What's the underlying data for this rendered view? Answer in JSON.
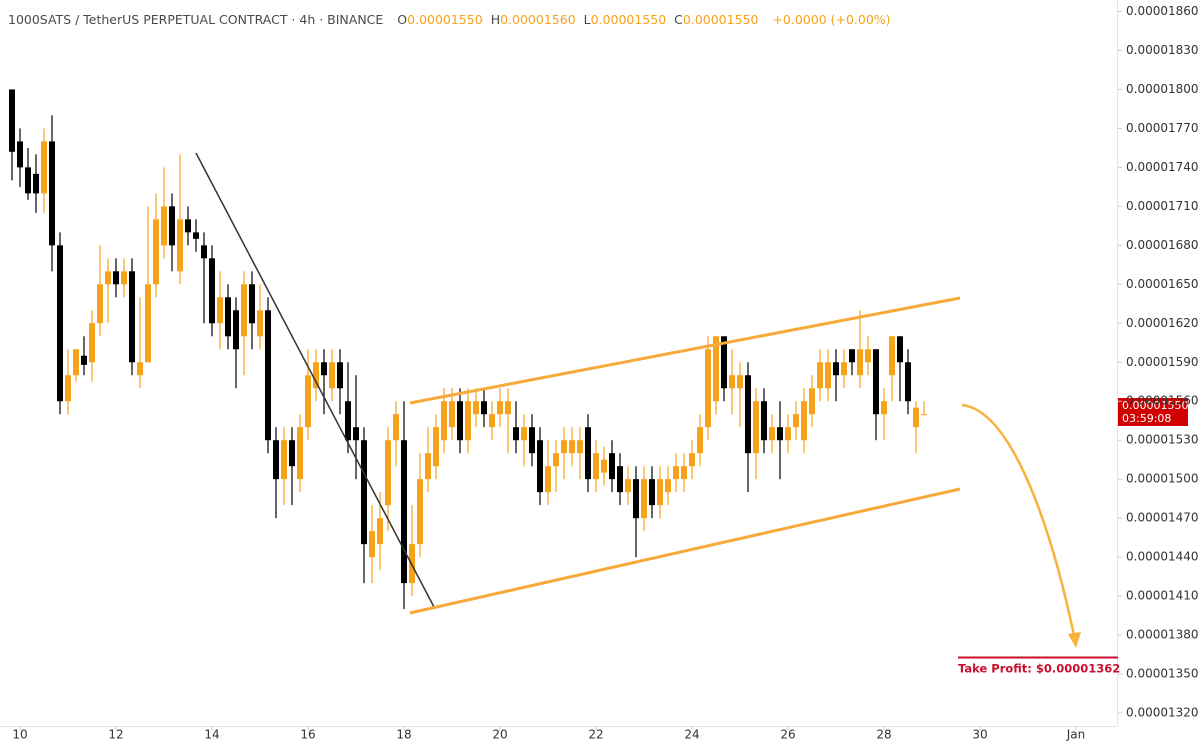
{
  "chart_data": {
    "type": "candlestick",
    "title": "1000SATS / TetherUS PERPETUAL CONTRACT · 4h · BINANCE",
    "legend": {
      "o": "O",
      "open": "0.00001550",
      "h": "H",
      "high": "0.00001560",
      "l": "L",
      "low": "0.00001550",
      "c": "C",
      "close": "0.00001550",
      "change": "+0.0000 (+0.00%)"
    },
    "last_price_label": "0.00001550",
    "countdown": "03:59:08",
    "take_profit_label": "Take Profit: $0.00001362",
    "up_color": "#f7a21b",
    "down_color": "#000000",
    "open": [
      1.8e-05,
      1.76e-05,
      1.74e-05,
      1.735e-05,
      1.72e-05,
      1.76e-05,
      1.68e-05,
      1.56e-05,
      1.58e-05,
      1.595e-05,
      1.59e-05,
      1.62e-05,
      1.65e-05,
      1.66e-05,
      1.65e-05,
      1.66e-05,
      1.58e-05,
      1.59e-05,
      1.65e-05,
      1.68e-05,
      1.71e-05,
      1.66e-05,
      1.7e-05,
      1.69e-05,
      1.68e-05,
      1.67e-05,
      1.62e-05,
      1.64e-05,
      1.63e-05,
      1.61e-05,
      1.65e-05,
      1.61e-05,
      1.63e-05,
      1.53e-05,
      1.5e-05,
      1.53e-05,
      1.5e-05,
      1.54e-05,
      1.57e-05,
      1.59e-05,
      1.57e-05,
      1.59e-05,
      1.56e-05,
      1.54e-05,
      1.53e-05,
      1.44e-05,
      1.45e-05,
      1.48e-05,
      1.53e-05,
      1.53e-05,
      1.42e-05,
      1.45e-05,
      1.5e-05,
      1.51e-05,
      1.53e-05,
      1.54e-05,
      1.56e-05,
      1.53e-05,
      1.55e-05,
      1.56e-05,
      1.54e-05,
      1.55e-05,
      1.55e-05,
      1.54e-05,
      1.53e-05,
      1.54e-05,
      1.53e-05,
      1.49e-05,
      1.51e-05,
      1.52e-05,
      1.52e-05,
      1.52e-05,
      1.54e-05,
      1.5e-05,
      1.505e-05,
      1.52e-05,
      1.51e-05,
      1.49e-05,
      1.5e-05,
      1.47e-05,
      1.5e-05,
      1.48e-05,
      1.49e-05,
      1.5e-05,
      1.5e-05,
      1.51e-05,
      1.52e-05,
      1.54e-05,
      1.56e-05,
      1.61e-05,
      1.57e-05,
      1.57e-05,
      1.58e-05,
      1.52e-05,
      1.56e-05,
      1.53e-05,
      1.54e-05,
      1.53e-05,
      1.54e-05,
      1.53e-05,
      1.55e-05,
      1.57e-05,
      1.57e-05,
      1.59e-05,
      1.58e-05,
      1.6e-05,
      1.58e-05,
      1.59e-05,
      1.6e-05,
      1.55e-05,
      1.58e-05,
      1.61e-05,
      1.59e-05,
      1.54e-05,
      1.55e-05
    ],
    "high": [
      1.8e-05,
      1.77e-05,
      1.755e-05,
      1.75e-05,
      1.77e-05,
      1.78e-05,
      1.69e-05,
      1.6e-05,
      1.6e-05,
      1.61e-05,
      1.63e-05,
      1.68e-05,
      1.67e-05,
      1.67e-05,
      1.67e-05,
      1.67e-05,
      1.64e-05,
      1.71e-05,
      1.72e-05,
      1.74e-05,
      1.72e-05,
      1.75e-05,
      1.71e-05,
      1.7e-05,
      1.69e-05,
      1.68e-05,
      1.66e-05,
      1.65e-05,
      1.64e-05,
      1.66e-05,
      1.66e-05,
      1.65e-05,
      1.64e-05,
      1.54e-05,
      1.54e-05,
      1.54e-05,
      1.55e-05,
      1.6e-05,
      1.6e-05,
      1.6e-05,
      1.6e-05,
      1.6e-05,
      1.59e-05,
      1.58e-05,
      1.54e-05,
      1.48e-05,
      1.49e-05,
      1.54e-05,
      1.56e-05,
      1.56e-05,
      1.48e-05,
      1.52e-05,
      1.54e-05,
      1.55e-05,
      1.57e-05,
      1.57e-05,
      1.57e-05,
      1.57e-05,
      1.57e-05,
      1.57e-05,
      1.56e-05,
      1.57e-05,
      1.57e-05,
      1.56e-05,
      1.55e-05,
      1.55e-05,
      1.54e-05,
      1.53e-05,
      1.53e-05,
      1.54e-05,
      1.54e-05,
      1.54e-05,
      1.55e-05,
      1.53e-05,
      1.525e-05,
      1.53e-05,
      1.52e-05,
      1.51e-05,
      1.51e-05,
      1.51e-05,
      1.51e-05,
      1.51e-05,
      1.51e-05,
      1.52e-05,
      1.52e-05,
      1.53e-05,
      1.55e-05,
      1.61e-05,
      1.61e-05,
      1.61e-05,
      1.6e-05,
      1.59e-05,
      1.59e-05,
      1.57e-05,
      1.57e-05,
      1.55e-05,
      1.56e-05,
      1.55e-05,
      1.56e-05,
      1.57e-05,
      1.58e-05,
      1.6e-05,
      1.6e-05,
      1.6e-05,
      1.6e-05,
      1.6e-05,
      1.63e-05,
      1.61e-05,
      1.6e-05,
      1.57e-05,
      1.61e-05,
      1.61e-05,
      1.6e-05,
      1.56e-05,
      1.56e-05
    ],
    "low": [
      1.73e-05,
      1.725e-05,
      1.715e-05,
      1.705e-05,
      1.705e-05,
      1.66e-05,
      1.55e-05,
      1.55e-05,
      1.575e-05,
      1.58e-05,
      1.575e-05,
      1.61e-05,
      1.62e-05,
      1.64e-05,
      1.64e-05,
      1.58e-05,
      1.57e-05,
      1.59e-05,
      1.64e-05,
      1.67e-05,
      1.66e-05,
      1.65e-05,
      1.68e-05,
      1.675e-05,
      1.62e-05,
      1.61e-05,
      1.6e-05,
      1.6e-05,
      1.57e-05,
      1.58e-05,
      1.6e-05,
      1.6e-05,
      1.52e-05,
      1.47e-05,
      1.48e-05,
      1.48e-05,
      1.49e-05,
      1.53e-05,
      1.56e-05,
      1.55e-05,
      1.56e-05,
      1.55e-05,
      1.52e-05,
      1.5e-05,
      1.42e-05,
      1.42e-05,
      1.43e-05,
      1.46e-05,
      1.51e-05,
      1.4e-05,
      1.41e-05,
      1.44e-05,
      1.49e-05,
      1.5e-05,
      1.52e-05,
      1.53e-05,
      1.52e-05,
      1.52e-05,
      1.54e-05,
      1.54e-05,
      1.53e-05,
      1.54e-05,
      1.52e-05,
      1.52e-05,
      1.51e-05,
      1.51e-05,
      1.48e-05,
      1.48e-05,
      1.49e-05,
      1.5e-05,
      1.51e-05,
      1.5e-05,
      1.49e-05,
      1.49e-05,
      1.495e-05,
      1.49e-05,
      1.48e-05,
      1.48e-05,
      1.44e-05,
      1.46e-05,
      1.47e-05,
      1.47e-05,
      1.48e-05,
      1.49e-05,
      1.49e-05,
      1.5e-05,
      1.51e-05,
      1.53e-05,
      1.55e-05,
      1.56e-05,
      1.55e-05,
      1.54e-05,
      1.49e-05,
      1.5e-05,
      1.52e-05,
      1.52e-05,
      1.5e-05,
      1.52e-05,
      1.53e-05,
      1.52e-05,
      1.54e-05,
      1.56e-05,
      1.56e-05,
      1.56e-05,
      1.57e-05,
      1.58e-05,
      1.57e-05,
      1.58e-05,
      1.53e-05,
      1.53e-05,
      1.56e-05,
      1.56e-05,
      1.55e-05,
      1.52e-05,
      1.55e-05
    ],
    "close": [
      1.752e-05,
      1.74e-05,
      1.72e-05,
      1.72e-05,
      1.76e-05,
      1.68e-05,
      1.56e-05,
      1.58e-05,
      1.6e-05,
      1.588e-05,
      1.62e-05,
      1.65e-05,
      1.66e-05,
      1.65e-05,
      1.66e-05,
      1.59e-05,
      1.59e-05,
      1.65e-05,
      1.7e-05,
      1.71e-05,
      1.68e-05,
      1.7e-05,
      1.69e-05,
      1.685e-05,
      1.67e-05,
      1.62e-05,
      1.64e-05,
      1.61e-05,
      1.6e-05,
      1.65e-05,
      1.62e-05,
      1.63e-05,
      1.53e-05,
      1.5e-05,
      1.53e-05,
      1.51e-05,
      1.54e-05,
      1.58e-05,
      1.59e-05,
      1.58e-05,
      1.59e-05,
      1.57e-05,
      1.53e-05,
      1.53e-05,
      1.45e-05,
      1.46e-05,
      1.47e-05,
      1.53e-05,
      1.55e-05,
      1.42e-05,
      1.45e-05,
      1.5e-05,
      1.52e-05,
      1.54e-05,
      1.56e-05,
      1.56e-05,
      1.53e-05,
      1.56e-05,
      1.56e-05,
      1.55e-05,
      1.55e-05,
      1.56e-05,
      1.56e-05,
      1.53e-05,
      1.54e-05,
      1.52e-05,
      1.49e-05,
      1.51e-05,
      1.52e-05,
      1.53e-05,
      1.53e-05,
      1.53e-05,
      1.5e-05,
      1.52e-05,
      1.515e-05,
      1.5e-05,
      1.49e-05,
      1.5e-05,
      1.47e-05,
      1.5e-05,
      1.48e-05,
      1.5e-05,
      1.5e-05,
      1.51e-05,
      1.51e-05,
      1.52e-05,
      1.54e-05,
      1.6e-05,
      1.61e-05,
      1.57e-05,
      1.58e-05,
      1.58e-05,
      1.52e-05,
      1.56e-05,
      1.53e-05,
      1.54e-05,
      1.53e-05,
      1.54e-05,
      1.55e-05,
      1.56e-05,
      1.57e-05,
      1.59e-05,
      1.59e-05,
      1.58e-05,
      1.59e-05,
      1.59e-05,
      1.6e-05,
      1.6e-05,
      1.55e-05,
      1.56e-05,
      1.61e-05,
      1.59e-05,
      1.56e-05,
      1.555e-05,
      1.55e-05
    ],
    "xlim": [
      -0.5,
      138
    ],
    "xticks": [
      {
        "value": 1,
        "label": "10"
      },
      {
        "value": 13,
        "label": "12"
      },
      {
        "value": 25,
        "label": "14"
      },
      {
        "value": 37,
        "label": "16"
      },
      {
        "value": 49,
        "label": "18"
      },
      {
        "value": 61,
        "label": "20"
      },
      {
        "value": 73,
        "label": "22"
      },
      {
        "value": 85,
        "label": "24"
      },
      {
        "value": 97,
        "label": "26"
      },
      {
        "value": 109,
        "label": "28"
      },
      {
        "value": 121,
        "label": "30"
      },
      {
        "value": 133,
        "label": "Jan"
      }
    ],
    "ylim": [
      1.31e-05,
      1.865e-05
    ],
    "yticks": [
      {
        "value": 1.32e-05,
        "label": "0.00001320"
      },
      {
        "value": 1.35e-05,
        "label": "0.00001350"
      },
      {
        "value": 1.38e-05,
        "label": "0.00001380"
      },
      {
        "value": 1.41e-05,
        "label": "0.00001410"
      },
      {
        "value": 1.44e-05,
        "label": "0.00001440"
      },
      {
        "value": 1.47e-05,
        "label": "0.00001470"
      },
      {
        "value": 1.5e-05,
        "label": "0.00001500"
      },
      {
        "value": 1.53e-05,
        "label": "0.00001530"
      },
      {
        "value": 1.56e-05,
        "label": "0.00001560"
      },
      {
        "value": 1.59e-05,
        "label": "0.00001590"
      },
      {
        "value": 1.62e-05,
        "label": "0.00001620"
      },
      {
        "value": 1.65e-05,
        "label": "0.00001650"
      },
      {
        "value": 1.68e-05,
        "label": "0.00001680"
      },
      {
        "value": 1.71e-05,
        "label": "0.00001710"
      },
      {
        "value": 1.74e-05,
        "label": "0.00001740"
      },
      {
        "value": 1.77e-05,
        "label": "0.00001770"
      },
      {
        "value": 1.8e-05,
        "label": "0.00001800"
      },
      {
        "value": 1.83e-05,
        "label": "0.00001830"
      },
      {
        "value": 1.86e-05,
        "label": "0.00001860"
      }
    ]
  }
}
